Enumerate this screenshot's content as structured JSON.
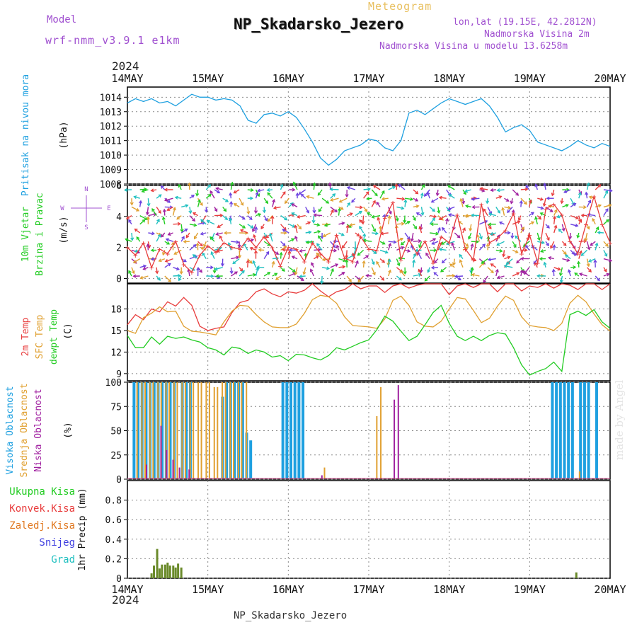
{
  "header": {
    "model_label": "Model",
    "model_name": "wrf-nmm_v3.9.1  e1km",
    "title": "NP_Skadarsko_Jezero",
    "subtitle": "Meteogram",
    "lonlat": "lon,lat (19.15E, 42.2812N)",
    "elevation": "Nadmorska Visina 2m",
    "model_elevation": "Nadmorska Visina u modelu 13.6258m",
    "footer": "NP_Skadarsko_Jezero",
    "credit": "made by Angel",
    "year": "2024"
  },
  "colors": {
    "pressure": "#1ea0e0",
    "temp2m": "#e83c3c",
    "sfc": "#e0a030",
    "dew": "#22cc22",
    "high_cloud": "#1ea0e0",
    "mid_cloud": "#e0a030",
    "low_cloud": "#a020a0",
    "precip": "#6a8a2a",
    "header_purple": "#a050d0"
  },
  "chart_data": [
    {
      "type": "line",
      "panel": "pressure",
      "ylabel_lines": [
        "Pritisak na nivou mora",
        "(hPa)"
      ],
      "ylim": [
        1008,
        1014.7
      ],
      "yticks": [
        1008,
        1009,
        1010,
        1011,
        1012,
        1013,
        1014
      ],
      "xlim": [
        0,
        6
      ],
      "xtick_labels": [
        "14MAY",
        "15MAY",
        "16MAY",
        "17MAY",
        "18MAY",
        "19MAY",
        "20MAY"
      ],
      "series": [
        {
          "color_key": "pressure",
          "x": [
            0,
            0.1,
            0.2,
            0.3,
            0.4,
            0.5,
            0.6,
            0.7,
            0.8,
            0.9,
            1.0,
            1.1,
            1.2,
            1.3,
            1.4,
            1.5,
            1.6,
            1.7,
            1.8,
            1.9,
            2.0,
            2.1,
            2.2,
            2.3,
            2.4,
            2.5,
            2.6,
            2.7,
            2.8,
            2.9,
            3.0,
            3.1,
            3.2,
            3.3,
            3.4,
            3.5,
            3.6,
            3.7,
            3.8,
            3.9,
            4.0,
            4.1,
            4.2,
            4.3,
            4.4,
            4.5,
            4.6,
            4.7,
            4.8,
            4.9,
            5.0,
            5.1,
            5.2,
            5.3,
            5.4,
            5.5,
            5.6,
            5.7,
            5.8,
            5.9,
            6.0
          ],
          "y": [
            1013.6,
            1013.9,
            1013.7,
            1013.9,
            1013.6,
            1013.7,
            1013.4,
            1013.8,
            1014.2,
            1014.0,
            1014.0,
            1013.8,
            1013.9,
            1013.8,
            1013.4,
            1012.4,
            1012.2,
            1012.8,
            1012.9,
            1012.7,
            1013.0,
            1012.6,
            1011.8,
            1010.9,
            1009.8,
            1009.3,
            1009.7,
            1010.3,
            1010.5,
            1010.7,
            1011.1,
            1011.0,
            1010.5,
            1010.3,
            1011.0,
            1012.9,
            1013.1,
            1012.8,
            1013.2,
            1013.6,
            1013.9,
            1013.7,
            1013.5,
            1013.7,
            1013.9,
            1013.4,
            1012.6,
            1011.6,
            1011.9,
            1012.1,
            1011.7,
            1010.9,
            1010.7,
            1010.5,
            1010.3,
            1010.6,
            1011.0,
            1010.7,
            1010.5,
            1010.8,
            1010.6
          ]
        }
      ]
    },
    {
      "type": "line",
      "panel": "wind",
      "ylabel_lines": [
        "10m Vjetar",
        "Brzina i Pravac",
        "(m/s)"
      ],
      "ylim": [
        -0.3,
        6
      ],
      "yticks": [
        0,
        2,
        4,
        6
      ],
      "compass": {
        "north": "N",
        "south": "S",
        "west": "W",
        "east": "E"
      },
      "series": [
        {
          "name": "speed",
          "color_key": "temp2m",
          "x": [
            0,
            0.1,
            0.2,
            0.3,
            0.4,
            0.5,
            0.6,
            0.7,
            0.8,
            0.9,
            1.0,
            1.1,
            1.2,
            1.3,
            1.4,
            1.5,
            1.6,
            1.7,
            1.8,
            1.9,
            2.0,
            2.1,
            2.2,
            2.3,
            2.4,
            2.5,
            2.6,
            2.7,
            2.8,
            2.9,
            3.0,
            3.1,
            3.2,
            3.3,
            3.4,
            3.5,
            3.6,
            3.7,
            3.8,
            3.9,
            4.0,
            4.1,
            4.2,
            4.3,
            4.4,
            4.5,
            4.6,
            4.7,
            4.8,
            4.9,
            5.0,
            5.1,
            5.2,
            5.3,
            5.4,
            5.5,
            5.6,
            5.7,
            5.8,
            5.9,
            6.0
          ],
          "y": [
            2.0,
            1.5,
            2.3,
            0.7,
            1.9,
            1.6,
            2.4,
            0.9,
            0.4,
            1.5,
            2.1,
            1.7,
            2.3,
            2.0,
            1.9,
            2.6,
            2.0,
            2.7,
            2.0,
            0.8,
            2.0,
            1.9,
            1.1,
            2.3,
            1.6,
            1.1,
            2.8,
            1.3,
            1.1,
            2.7,
            1.9,
            1.8,
            3.9,
            4.9,
            1.2,
            2.5,
            1.6,
            2.4,
            1.0,
            2.7,
            2.3,
            4.1,
            1.9,
            1.2,
            4.8,
            2.3,
            2.6,
            3.1,
            4.2,
            1.6,
            2.8,
            1.0,
            4.5,
            4.8,
            4.1,
            2.4,
            1.6,
            3.5,
            5.3,
            3.5,
            2.3
          ]
        }
      ]
    },
    {
      "type": "line",
      "panel": "temperature",
      "ylabel_lines": [
        "2m Temp",
        "SFC Temp",
        "dewpt Temp",
        "(C)"
      ],
      "ylim": [
        8,
        21.5
      ],
      "yticks": [
        9,
        12,
        15,
        18
      ],
      "series": [
        {
          "name": "2m Temp",
          "color_key": "temp2m",
          "x": [
            0,
            0.1,
            0.2,
            0.3,
            0.4,
            0.5,
            0.6,
            0.7,
            0.8,
            0.9,
            1.0,
            1.1,
            1.2,
            1.3,
            1.4,
            1.5,
            1.6,
            1.7,
            1.8,
            1.9,
            2.0,
            2.1,
            2.2,
            2.3,
            2.4,
            2.5,
            2.6,
            2.7,
            2.8,
            2.9,
            3.0,
            3.1,
            3.2,
            3.3,
            3.4,
            3.5,
            3.6,
            3.7,
            3.8,
            3.9,
            4.0,
            4.1,
            4.2,
            4.3,
            4.4,
            4.5,
            4.6,
            4.7,
            4.8,
            4.9,
            5.0,
            5.1,
            5.2,
            5.3,
            5.4,
            5.5,
            5.6,
            5.7,
            5.8,
            5.9,
            6.0
          ],
          "y": [
            15.8,
            17.2,
            16.5,
            18.0,
            17.6,
            19.0,
            18.4,
            19.6,
            18.5,
            15.6,
            15.0,
            15.3,
            15.5,
            17.5,
            18.9,
            19.2,
            20.4,
            20.8,
            20.1,
            19.7,
            20.4,
            20.2,
            20.6,
            21.5,
            20.5,
            19.7,
            20.4,
            20.7,
            21.5,
            20.8,
            21.2,
            21.2,
            20.3,
            21.2,
            21.5,
            20.9,
            21.3,
            21.5,
            21.5,
            21.5,
            20.0,
            21.2,
            21.5,
            21.0,
            21.5,
            21.5,
            20.4,
            21.5,
            21.5,
            20.5,
            21.2,
            21.0,
            21.5,
            20.9,
            21.5,
            21.3,
            20.7,
            21.5,
            21.5,
            20.7,
            21.5
          ]
        },
        {
          "name": "SFC Temp",
          "color_key": "sfc",
          "x": [
            0,
            0.1,
            0.2,
            0.3,
            0.4,
            0.5,
            0.6,
            0.7,
            0.8,
            0.9,
            1.0,
            1.1,
            1.2,
            1.3,
            1.4,
            1.5,
            1.6,
            1.7,
            1.8,
            1.9,
            2.0,
            2.1,
            2.2,
            2.3,
            2.4,
            2.5,
            2.6,
            2.7,
            2.8,
            2.9,
            3.0,
            3.1,
            3.2,
            3.3,
            3.4,
            3.5,
            3.6,
            3.7,
            3.8,
            3.9,
            4.0,
            4.1,
            4.2,
            4.3,
            4.4,
            4.5,
            4.6,
            4.7,
            4.8,
            4.9,
            5.0,
            5.1,
            5.2,
            5.3,
            5.4,
            5.5,
            5.6,
            5.7,
            5.8,
            5.9,
            6.0
          ],
          "y": [
            15.0,
            14.6,
            16.8,
            17.4,
            18.3,
            17.6,
            17.7,
            15.6,
            14.9,
            14.8,
            14.6,
            14.4,
            16.2,
            17.7,
            18.5,
            18.4,
            17.2,
            16.2,
            15.5,
            15.4,
            15.4,
            15.9,
            17.4,
            19.3,
            19.9,
            19.7,
            18.8,
            16.9,
            15.7,
            15.6,
            15.5,
            15.3,
            16.6,
            19.2,
            19.8,
            18.5,
            16.2,
            15.6,
            15.5,
            16.3,
            18.0,
            19.6,
            19.4,
            17.8,
            16.1,
            16.7,
            18.4,
            19.8,
            19.2,
            16.9,
            15.7,
            15.5,
            15.4,
            15.0,
            16.0,
            18.8,
            19.9,
            19.0,
            17.3,
            15.8,
            14.9
          ]
        },
        {
          "name": "dewpt Temp",
          "color_key": "dew",
          "x": [
            0,
            0.1,
            0.2,
            0.3,
            0.4,
            0.5,
            0.6,
            0.7,
            0.8,
            0.9,
            1.0,
            1.1,
            1.2,
            1.3,
            1.4,
            1.5,
            1.6,
            1.7,
            1.8,
            1.9,
            2.0,
            2.1,
            2.2,
            2.3,
            2.4,
            2.5,
            2.6,
            2.7,
            2.8,
            2.9,
            3.0,
            3.1,
            3.2,
            3.3,
            3.4,
            3.5,
            3.6,
            3.7,
            3.8,
            3.9,
            4.0,
            4.1,
            4.2,
            4.3,
            4.4,
            4.5,
            4.6,
            4.7,
            4.8,
            4.9,
            5.0,
            5.1,
            5.2,
            5.3,
            5.4,
            5.5,
            5.6,
            5.7,
            5.8,
            5.9,
            6.0
          ],
          "y": [
            14.3,
            12.6,
            12.6,
            14.1,
            13.1,
            14.2,
            13.9,
            14.1,
            13.7,
            13.4,
            12.6,
            12.3,
            11.6,
            12.7,
            12.5,
            11.8,
            12.3,
            12.0,
            11.3,
            11.5,
            10.8,
            11.7,
            11.6,
            11.2,
            10.9,
            11.5,
            12.6,
            12.3,
            12.8,
            13.3,
            13.7,
            15.1,
            17.0,
            16.3,
            14.9,
            13.6,
            14.2,
            15.8,
            17.5,
            18.5,
            16.0,
            14.2,
            13.6,
            14.2,
            13.6,
            14.3,
            14.7,
            14.5,
            12.6,
            10.2,
            8.8,
            9.3,
            9.7,
            10.6,
            9.3,
            17.2,
            17.7,
            17.1,
            17.9,
            16.2,
            15.3
          ]
        }
      ]
    },
    {
      "type": "bar",
      "panel": "clouds",
      "ylabel_lines": [
        "Visoka Oblacnost",
        "Srednja Oblacnost",
        "Niska Oblacnost",
        "(%)"
      ],
      "ylim": [
        0,
        100
      ],
      "yticks": [
        0,
        25,
        50,
        75,
        100
      ],
      "series": [
        {
          "name": "Visoka Oblacnost",
          "color_key": "high_cloud",
          "x": [
            0.1,
            0.15,
            0.2,
            0.25,
            0.3,
            0.35,
            0.4,
            0.45,
            0.5,
            0.55,
            0.6,
            0.7,
            0.75,
            0.8,
            1.2,
            1.25,
            1.3,
            1.35,
            1.4,
            1.45,
            1.5,
            1.55,
            1.95,
            2.0,
            2.05,
            2.1,
            2.15,
            2.2,
            5.3,
            5.35,
            5.4,
            5.45,
            5.5,
            5.55,
            5.65,
            5.7,
            5.75,
            5.85
          ],
          "values": [
            100,
            100,
            100,
            100,
            100,
            100,
            100,
            100,
            100,
            100,
            100,
            100,
            100,
            100,
            85,
            100,
            100,
            100,
            100,
            100,
            48,
            40,
            100,
            100,
            100,
            100,
            100,
            100,
            100,
            100,
            100,
            100,
            100,
            100,
            100,
            100,
            100,
            100
          ]
        },
        {
          "name": "Srednja Oblacnost",
          "color_key": "mid_cloud",
          "x": [
            0.12,
            0.18,
            0.22,
            0.28,
            0.32,
            0.38,
            0.42,
            0.48,
            0.52,
            0.58,
            0.62,
            0.68,
            0.72,
            0.78,
            0.82,
            0.88,
            0.92,
            0.98,
            1.02,
            1.08,
            1.12,
            1.18,
            1.22,
            1.28,
            1.32,
            1.38,
            1.42,
            1.48,
            2.45,
            3.1,
            3.15,
            5.62
          ],
          "values": [
            100,
            100,
            100,
            100,
            100,
            100,
            100,
            100,
            100,
            100,
            100,
            100,
            100,
            100,
            100,
            100,
            100,
            100,
            100,
            95,
            95,
            100,
            100,
            100,
            100,
            100,
            100,
            100,
            12,
            65,
            95,
            8
          ]
        },
        {
          "name": "Niska Oblacnost",
          "color_key": "low_cloud",
          "x": [
            0.22,
            0.4,
            0.47,
            0.55,
            0.63,
            0.75,
            2.4,
            3.3,
            3.35
          ],
          "values": [
            15,
            55,
            30,
            20,
            12,
            10,
            4,
            82,
            97
          ]
        }
      ]
    },
    {
      "type": "bar",
      "panel": "precipitation",
      "ylabel": "1hr Precip (mm)",
      "legend": [
        "Ukupna Kisa",
        "Konvek.Kisa",
        "Zaledj.Kisa",
        "Snijeg",
        "Grad"
      ],
      "legend_colors": [
        "#22cc22",
        "#e83c3c",
        "#e07820",
        "#4040e0",
        "#20c0c0"
      ],
      "ylim": [
        0,
        1.0
      ],
      "yticks": [
        0,
        0.2,
        0.4,
        0.6,
        0.8
      ],
      "x": [
        0.3,
        0.33,
        0.37,
        0.4,
        0.43,
        0.47,
        0.5,
        0.53,
        0.57,
        0.6,
        0.63,
        0.67,
        0.7,
        5.58
      ],
      "values": [
        0.05,
        0.13,
        0.3,
        0.1,
        0.14,
        0.14,
        0.16,
        0.13,
        0.13,
        0.11,
        0.15,
        0.11,
        0.0,
        0.06
      ]
    }
  ]
}
